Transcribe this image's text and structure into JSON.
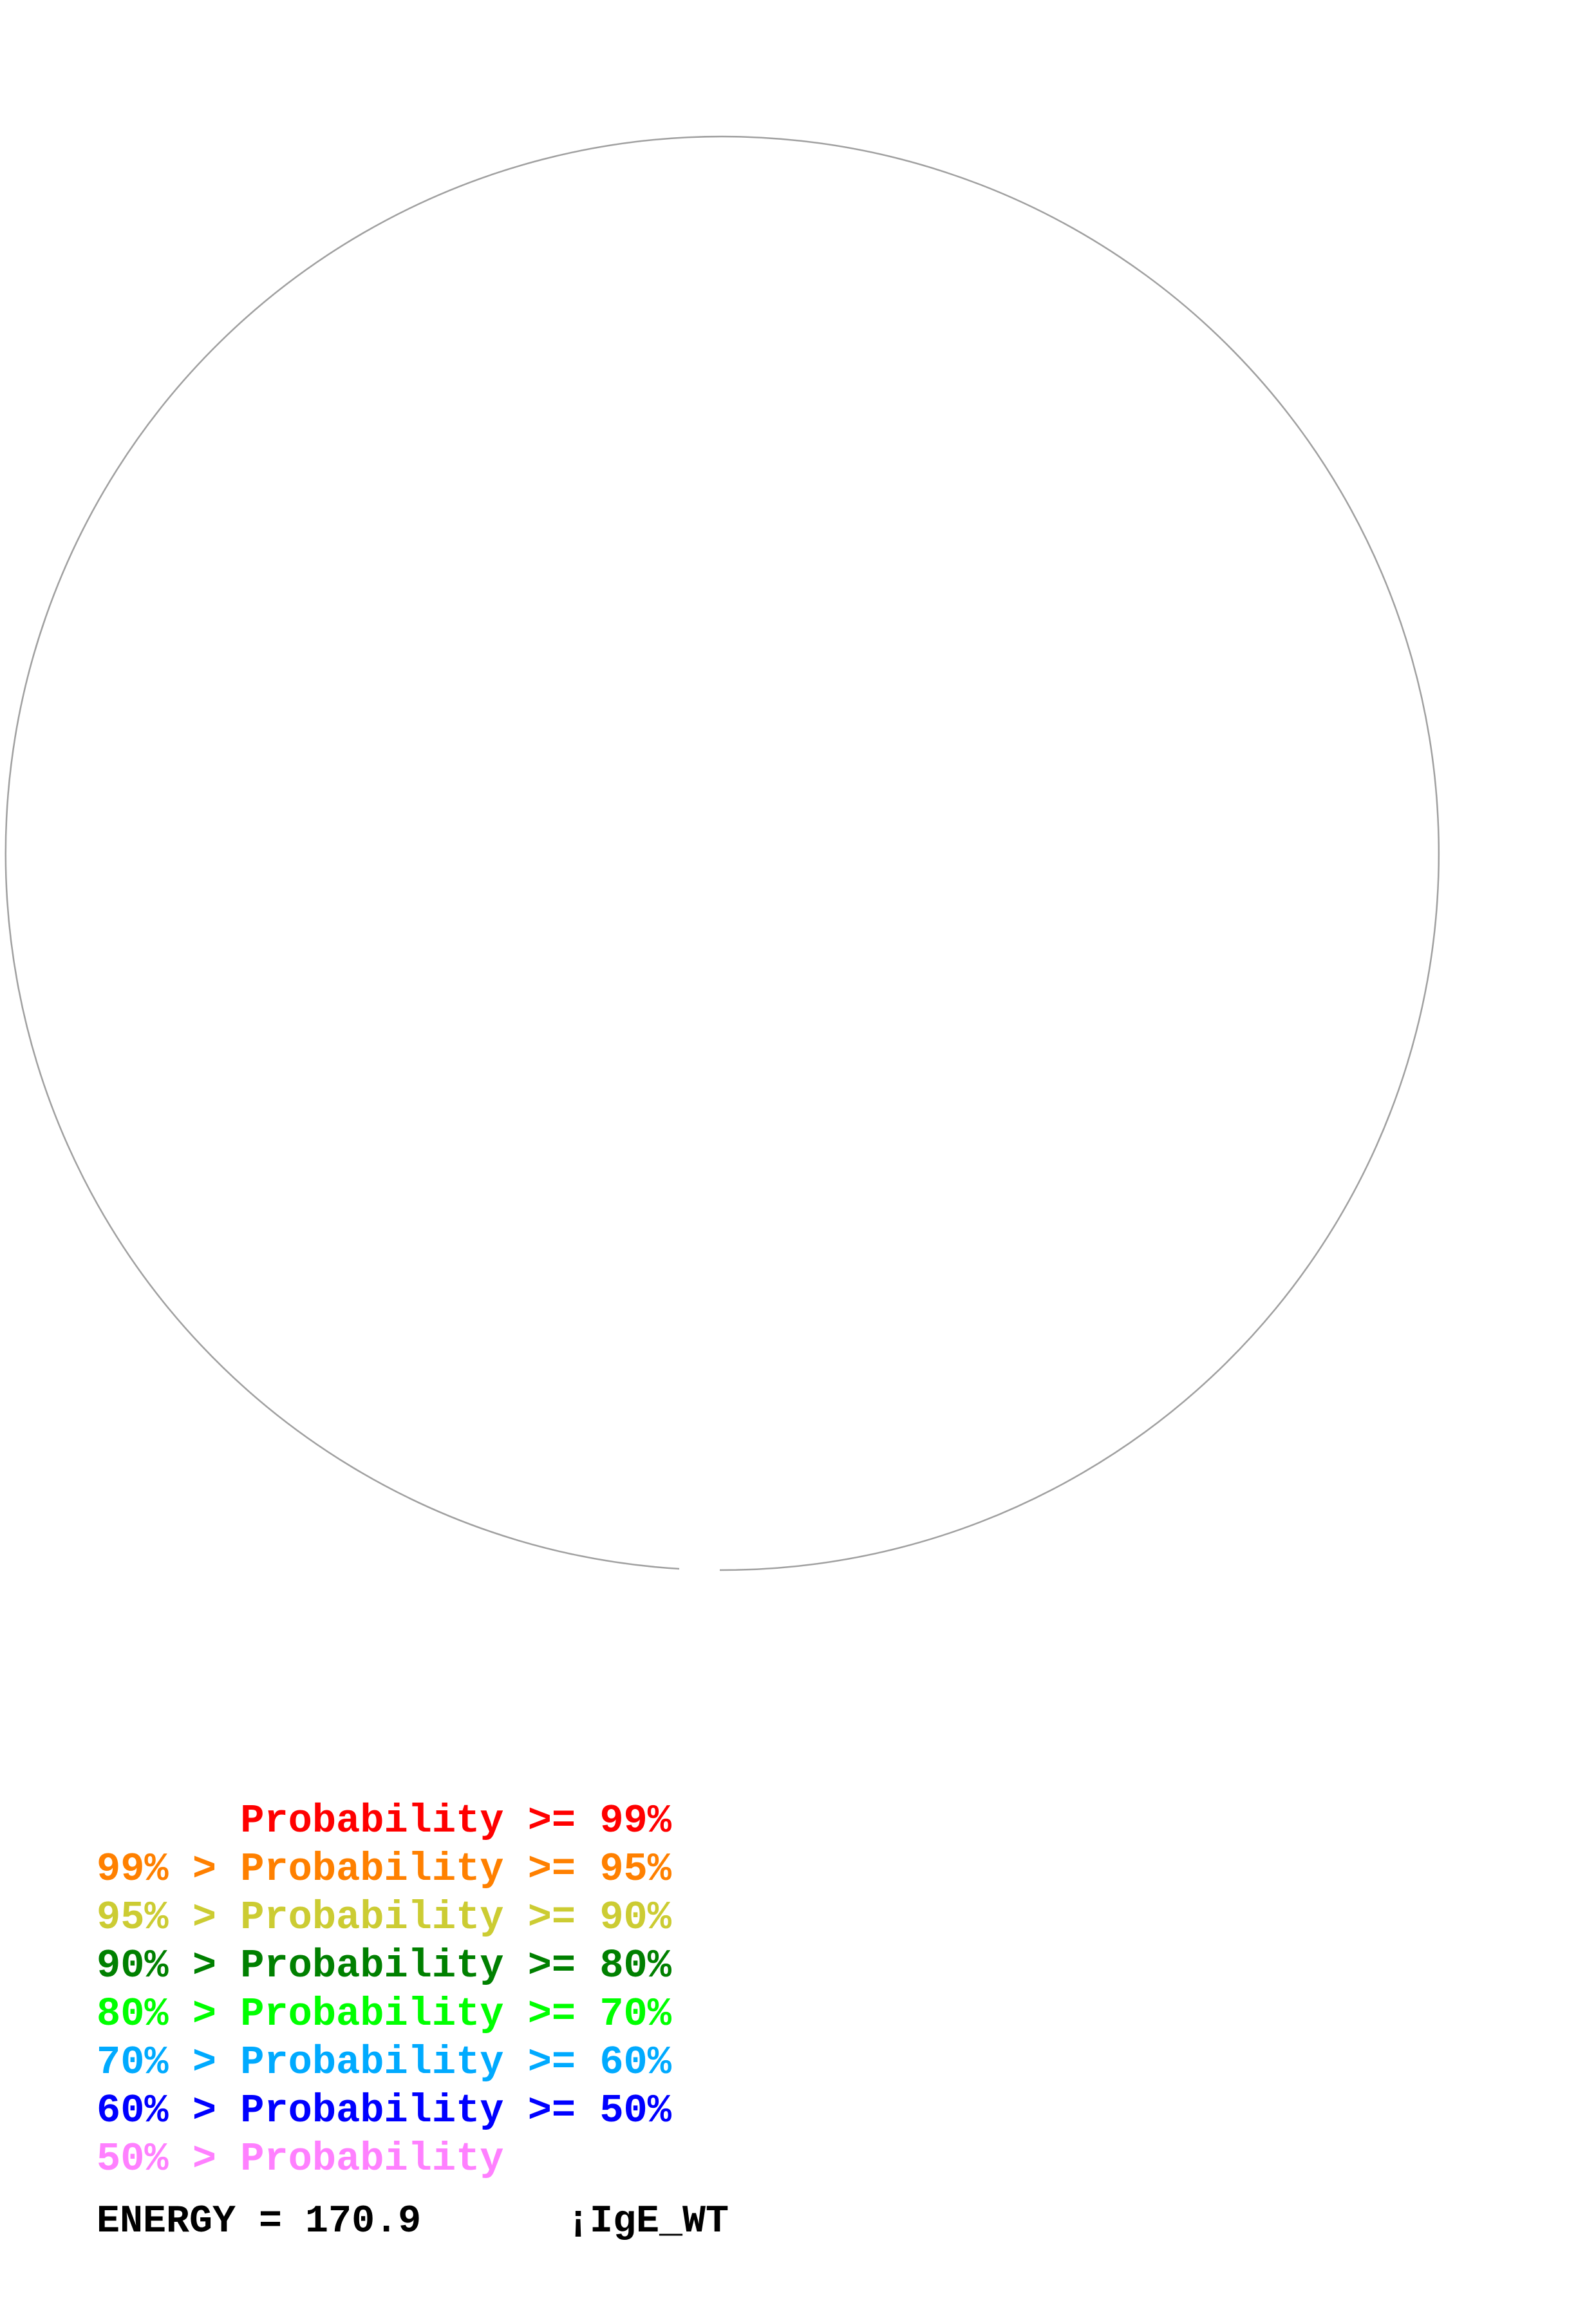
{
  "diagram": {
    "circle_color": "#a0a0a0"
  },
  "legend": [
    {
      "text": "      Probability >= 99%",
      "color": "#ff0000"
    },
    {
      "text": "99% > Probability >= 95%",
      "color": "#ff8000"
    },
    {
      "text": "95% > Probability >= 90%",
      "color": "#cccc33"
    },
    {
      "text": "90% > Probability >= 80%",
      "color": "#008000"
    },
    {
      "text": "80% > Probability >= 70%",
      "color": "#00ff00"
    },
    {
      "text": "70% > Probability >= 60%",
      "color": "#00aaff"
    },
    {
      "text": "60% > Probability >= 50%",
      "color": "#0000ff"
    },
    {
      "text": "50% > Probability",
      "color": "#ff80ff"
    }
  ],
  "footer": {
    "energy": "ENERGY = 170.9",
    "sequence_name": "¡IgE_WT"
  }
}
